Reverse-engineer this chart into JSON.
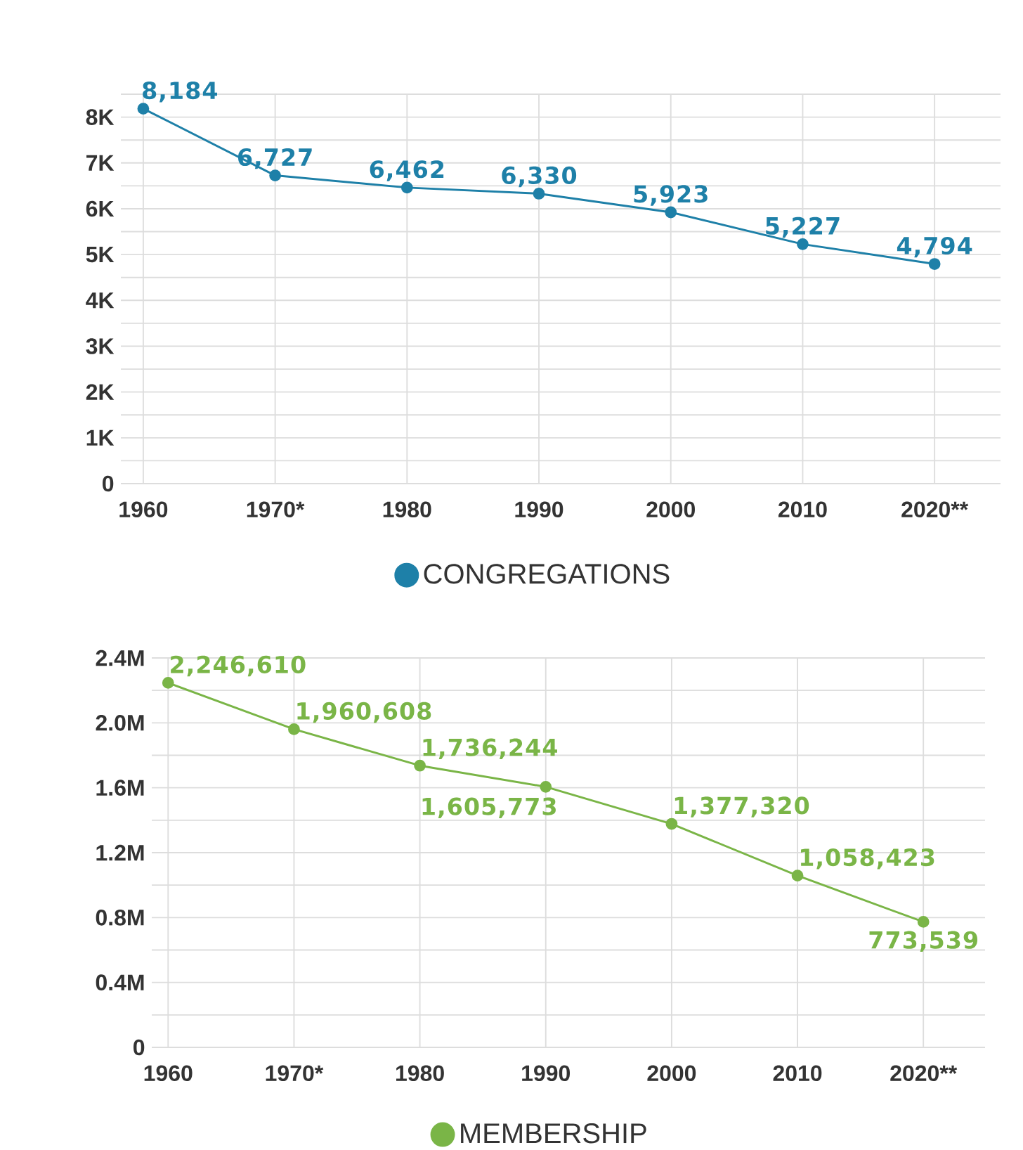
{
  "chart_data": [
    {
      "type": "line",
      "categories": [
        "1960",
        "1970*",
        "1980",
        "1990",
        "2000",
        "2010",
        "2020**"
      ],
      "series": [
        {
          "name": "CONGREGATIONS",
          "color": "#1e80a8",
          "values": [
            8184,
            6727,
            6462,
            6330,
            5923,
            5227,
            4794
          ],
          "value_labels": [
            "8,184",
            "6,727",
            "6,462",
            "6,330",
            "5,923",
            "5,227",
            "4,794"
          ]
        }
      ],
      "ylim": [
        0,
        8500
      ],
      "yticks": [
        0,
        {
          "value": 500,
          "label": null
        },
        {
          "value": 1000,
          "label": "1K"
        },
        {
          "value": 1500,
          "label": null
        },
        {
          "value": 2000,
          "label": "2K"
        },
        {
          "value": 2500,
          "label": null
        },
        {
          "value": 3000,
          "label": "3K"
        },
        {
          "value": 3500,
          "label": null
        },
        {
          "value": 4000,
          "label": "4K"
        },
        {
          "value": 4500,
          "label": null
        },
        {
          "value": 5000,
          "label": "5K"
        },
        {
          "value": 5500,
          "label": null
        },
        {
          "value": 6000,
          "label": "6K"
        },
        {
          "value": 6500,
          "label": null
        },
        {
          "value": 7000,
          "label": "7K"
        },
        {
          "value": 7500,
          "label": null
        },
        {
          "value": 8000,
          "label": "8K"
        },
        {
          "value": 8500,
          "label": null
        }
      ],
      "grid": true,
      "legend": "bottom",
      "marker": "circle",
      "line_style": "solid"
    },
    {
      "type": "line",
      "categories": [
        "1960",
        "1970*",
        "1980",
        "1990",
        "2000",
        "2010",
        "2020**"
      ],
      "series": [
        {
          "name": "MEMBERSHIP",
          "color": "#7ab547",
          "values": [
            2246610,
            1960608,
            1736244,
            1605773,
            1377320,
            1058423,
            773539
          ],
          "value_labels": [
            "2,246,610",
            "1,960,608",
            "1,736,244",
            "1,605,773",
            "1,377,320",
            "1,058,423",
            "773,539"
          ]
        }
      ],
      "ylim": [
        0,
        2400000
      ],
      "yticks": [
        0,
        {
          "value": 200000,
          "label": null
        },
        {
          "value": 400000,
          "label": "0.4M"
        },
        {
          "value": 600000,
          "label": null
        },
        {
          "value": 800000,
          "label": "0.8M"
        },
        {
          "value": 1000000,
          "label": null
        },
        {
          "value": 1200000,
          "label": "1.2M"
        },
        {
          "value": 1400000,
          "label": null
        },
        {
          "value": 1600000,
          "label": "1.6M"
        },
        {
          "value": 1800000,
          "label": null
        },
        {
          "value": 2000000,
          "label": "2.0M"
        },
        {
          "value": 2200000,
          "label": null
        },
        {
          "value": 2400000,
          "label": "2.4M"
        }
      ],
      "grid": true,
      "legend": "bottom",
      "marker": "circle",
      "line_style": "solid"
    }
  ]
}
